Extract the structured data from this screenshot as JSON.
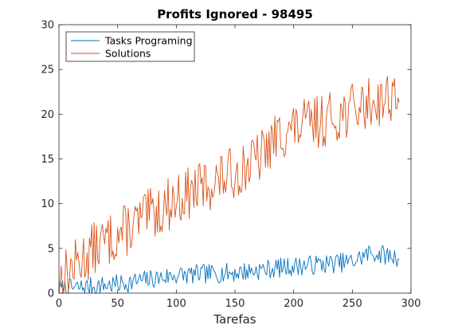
{
  "chart_data": {
    "type": "line",
    "title": "Profits Ignored - 98495",
    "xlabel": "Tarefas",
    "ylabel": "",
    "xlim": [
      0,
      300
    ],
    "ylim": [
      0,
      30
    ],
    "xticks": [
      0,
      50,
      100,
      150,
      200,
      250,
      300
    ],
    "yticks": [
      0,
      5,
      10,
      15,
      20,
      25,
      30
    ],
    "grid": false,
    "legend_position": "top-left",
    "point_count": 291,
    "series": [
      {
        "name": "Tasks Programing",
        "color": "#0072BD",
        "trend_knots": [
          [
            0,
            0.4
          ],
          [
            50,
            1.0
          ],
          [
            100,
            2.0
          ],
          [
            150,
            2.3
          ],
          [
            200,
            3.0
          ],
          [
            250,
            3.5
          ],
          [
            265,
            4.5
          ],
          [
            290,
            4.0
          ]
        ],
        "amplitude": 1.1,
        "seed": 7
      },
      {
        "name": "Solutions",
        "color": "#D95319",
        "trend_knots": [
          [
            0,
            1.5
          ],
          [
            30,
            5.0
          ],
          [
            50,
            6.5
          ],
          [
            100,
            10.5
          ],
          [
            150,
            13.5
          ],
          [
            170,
            15.0
          ],
          [
            190,
            18.0
          ],
          [
            230,
            19.5
          ],
          [
            260,
            21.0
          ],
          [
            290,
            22.5
          ]
        ],
        "amplitude": 3.0,
        "seed": 13
      }
    ]
  }
}
